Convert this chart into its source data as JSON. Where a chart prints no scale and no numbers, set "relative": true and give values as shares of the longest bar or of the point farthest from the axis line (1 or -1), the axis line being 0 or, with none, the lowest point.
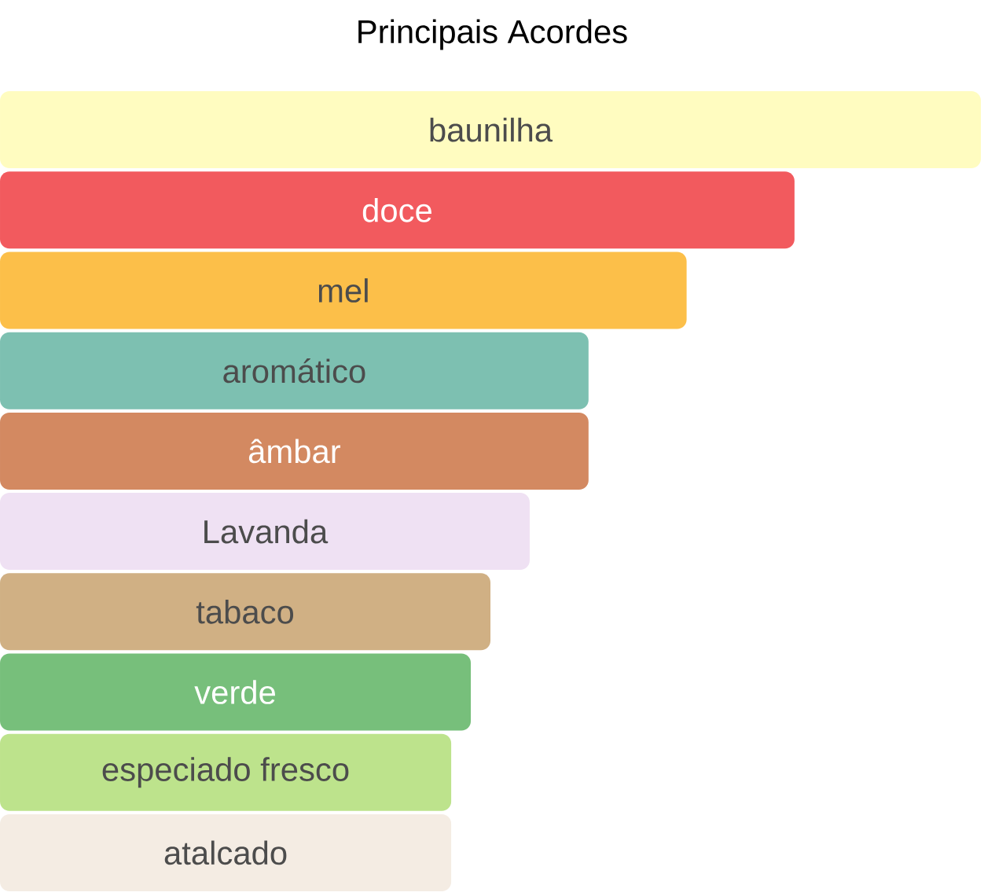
{
  "chart_data": {
    "type": "bar",
    "orientation": "horizontal",
    "relative": true,
    "title": "Principais Acordes",
    "categories": [
      "baunilha",
      "doce",
      "mel",
      "aromático",
      "âmbar",
      "Lavanda",
      "tabaco",
      "verde",
      "especiado fresco",
      "atalcado"
    ],
    "values": [
      1,
      0.81,
      0.7,
      0.6,
      0.6,
      0.54,
      0.5,
      0.48,
      0.46,
      0.46
    ],
    "colors": [
      "#fffcc0",
      "#f25a5e",
      "#fcbf49",
      "#7dc0b1",
      "#d38961",
      "#efe1f3",
      "#d0b084",
      "#77bf7b",
      "#bde38c",
      "#f4ece3"
    ]
  }
}
